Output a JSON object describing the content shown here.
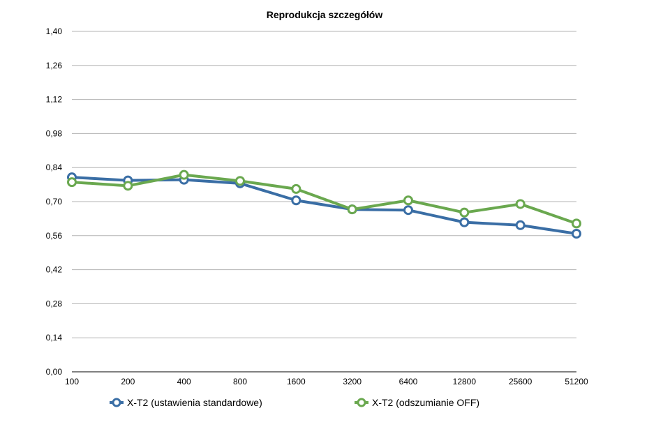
{
  "chart_data": {
    "type": "line",
    "title": "Reprodukcja szczegółów",
    "categories": [
      "100",
      "200",
      "400",
      "800",
      "1600",
      "3200",
      "6400",
      "12800",
      "25600",
      "51200"
    ],
    "ylim": [
      0,
      1.4
    ],
    "yticks": [
      "0,00",
      "0,14",
      "0,28",
      "0,42",
      "0,56",
      "0,70",
      "0,84",
      "0,98",
      "1,12",
      "1,26",
      "1,40"
    ],
    "grid": true,
    "legend_position": "bottom",
    "series": [
      {
        "name": "X-T2 (ustawienia standardowe)",
        "color": "#3a6ea5",
        "values": [
          0.8,
          0.787,
          0.79,
          0.775,
          0.705,
          0.668,
          0.665,
          0.615,
          0.603,
          0.568
        ]
      },
      {
        "name": "X-T2 (odszumianie OFF)",
        "color": "#6aa84f",
        "values": [
          0.78,
          0.765,
          0.81,
          0.785,
          0.752,
          0.668,
          0.705,
          0.655,
          0.69,
          0.61
        ]
      }
    ]
  }
}
